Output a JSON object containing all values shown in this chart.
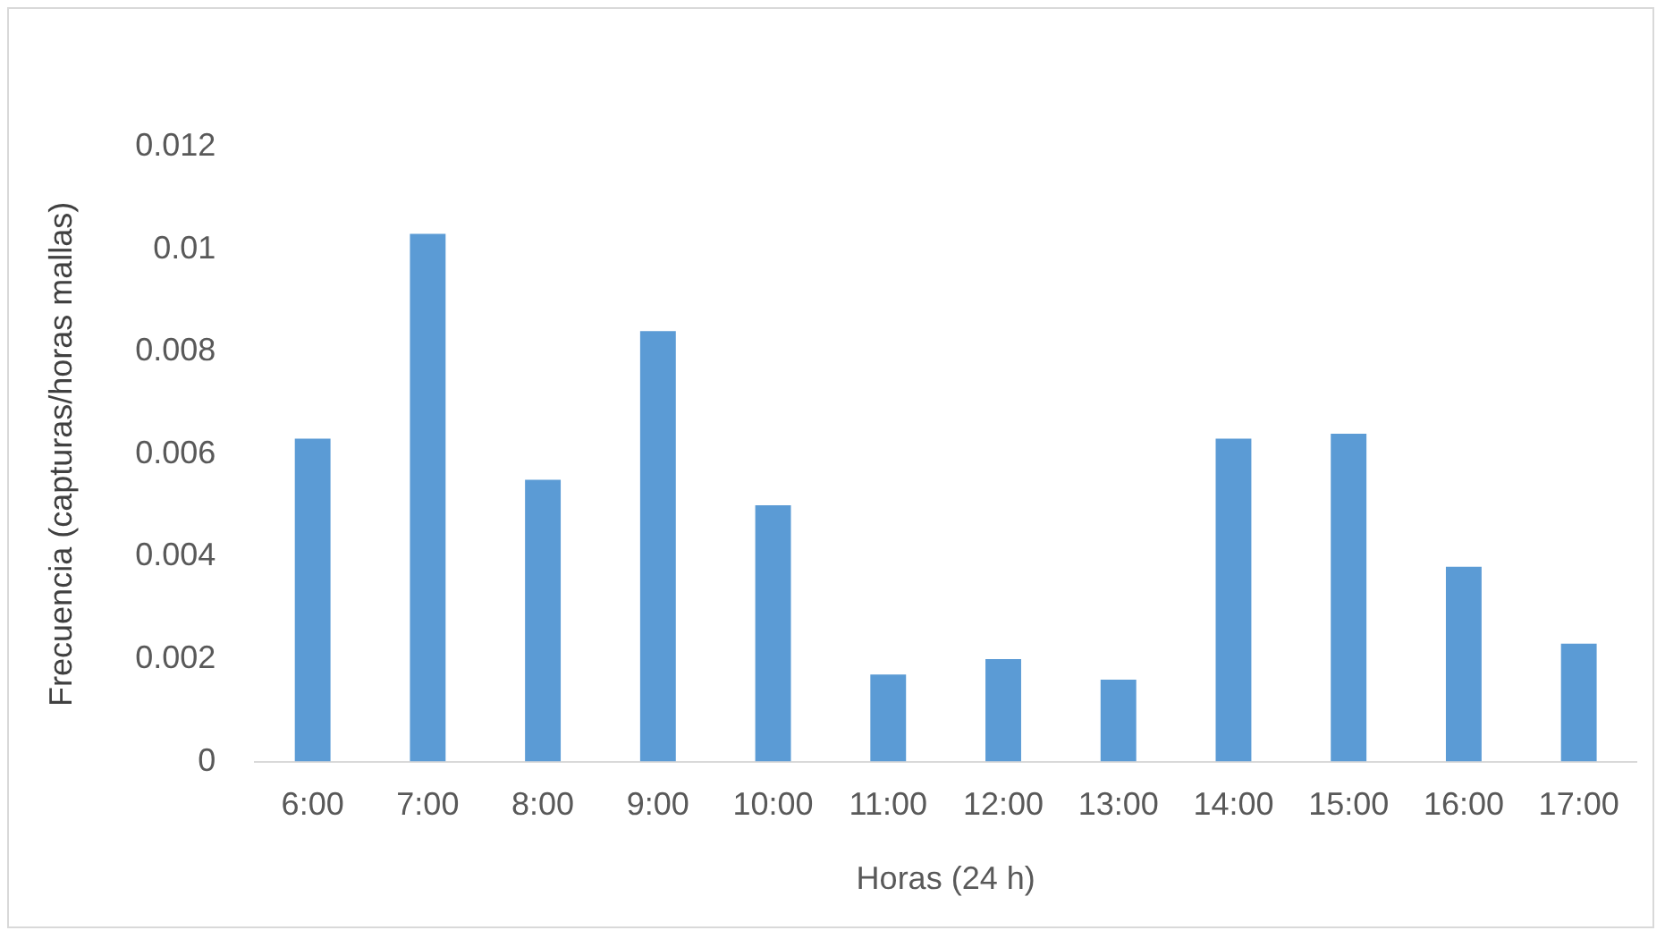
{
  "chart_data": {
    "type": "bar",
    "xlabel": "Horas (24 h)",
    "ylabel": "Frecuencia (capturas/horas mallas)",
    "categories": [
      "6:00",
      "7:00",
      "8:00",
      "9:00",
      "10:00",
      "11:00",
      "12:00",
      "13:00",
      "14:00",
      "15:00",
      "16:00",
      "17:00"
    ],
    "values": [
      0.0063,
      0.0103,
      0.0055,
      0.0084,
      0.005,
      0.0017,
      0.002,
      0.0016,
      0.0063,
      0.0064,
      0.0038,
      0.0023
    ],
    "color": "#5b9bd5",
    "ylim": [
      0,
      0.012
    ],
    "yticks": [
      0,
      0.002,
      0.004,
      0.006,
      0.008,
      0.01,
      0.012
    ],
    "grid": false,
    "legend": false
  }
}
